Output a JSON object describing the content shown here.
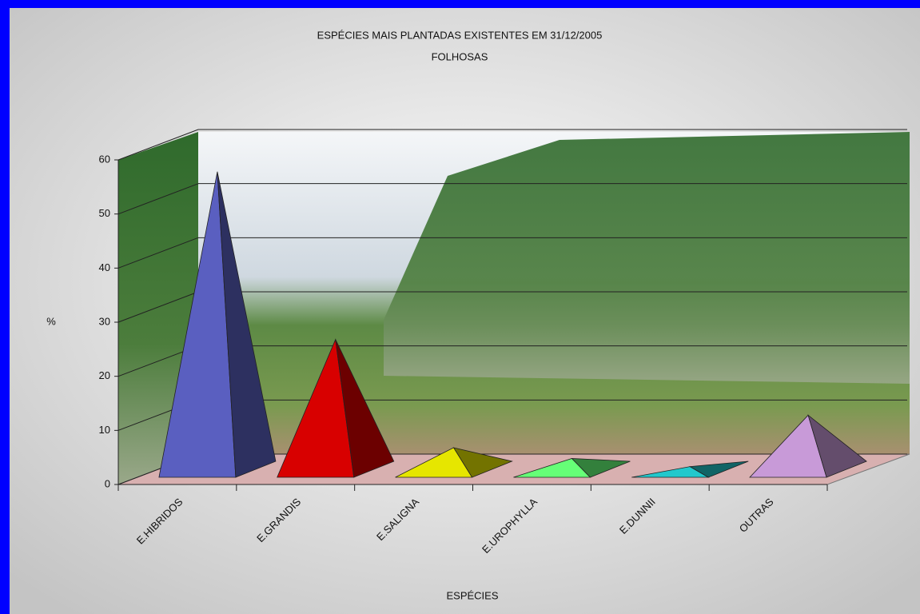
{
  "chart_data": {
    "type": "pyramid3d",
    "title": "ESPÉCIES MAIS PLANTADAS EXISTENTES EM 31/12/2005",
    "subtitle": "FOLHOSAS",
    "y_label": "%",
    "x_label": "ESPÉCIES",
    "categories": [
      "E.HIBRIDOS",
      "E.GRANDIS",
      "E.SALIGNA",
      "E.UROPHYLLA",
      "E.DUNNII",
      "OUTRAS"
    ],
    "values": [
      55,
      24,
      4,
      2,
      0.5,
      10
    ],
    "colors": [
      "#5a5fc0",
      "#d80000",
      "#e6e600",
      "#66ff77",
      "#22c8cc",
      "#c89ad8"
    ],
    "ylim": [
      0,
      60
    ],
    "yticks": [
      0,
      10,
      20,
      30,
      40,
      50,
      60
    ],
    "grid": true
  }
}
